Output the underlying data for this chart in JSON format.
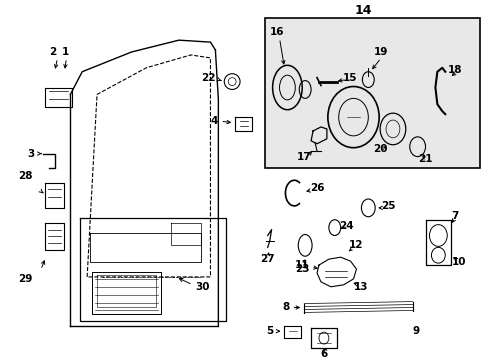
{
  "bg_color": "#ffffff",
  "line_color": "#000000",
  "inset_bg": "#e8e8e8",
  "figsize": [
    4.89,
    3.6
  ],
  "dpi": 100,
  "font_size": 7.5,
  "label_bold": true
}
